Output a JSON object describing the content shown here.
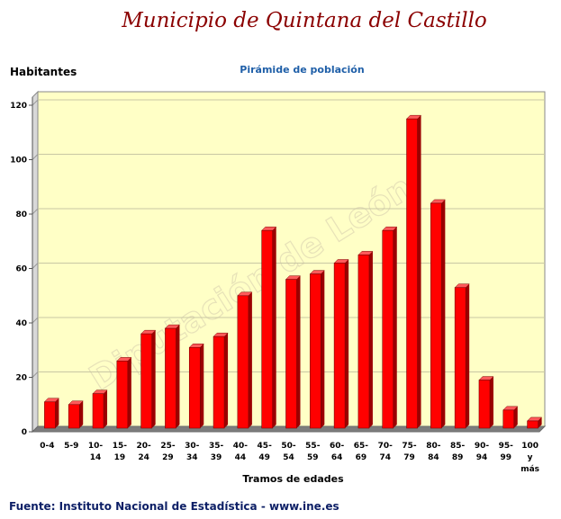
{
  "page": {
    "title": "Municipio de Quintana del Castillo",
    "source": "Fuente: Instituto Nacional de Estadística - www.ine.es",
    "watermark": "Diputación de León"
  },
  "chart_data": {
    "type": "bar",
    "title": "Pirámide de población",
    "ylabel": "Habitantes",
    "xlabel": "Tramos de edades",
    "ylim": [
      0,
      120
    ],
    "yticks": [
      0,
      20,
      40,
      60,
      80,
      100,
      120
    ],
    "grid": true,
    "categories": [
      [
        "0-4"
      ],
      [
        "5-9"
      ],
      [
        "10-",
        "14"
      ],
      [
        "15-",
        "19"
      ],
      [
        "20-",
        "24"
      ],
      [
        "25-",
        "29"
      ],
      [
        "30-",
        "34"
      ],
      [
        "35-",
        "39"
      ],
      [
        "40-",
        "44"
      ],
      [
        "45-",
        "49"
      ],
      [
        "50-",
        "54"
      ],
      [
        "55-",
        "59"
      ],
      [
        "60-",
        "64"
      ],
      [
        "65-",
        "69"
      ],
      [
        "70-",
        "74"
      ],
      [
        "75-",
        "79"
      ],
      [
        "80-",
        "84"
      ],
      [
        "85-",
        "89"
      ],
      [
        "90-",
        "94"
      ],
      [
        "95-",
        "99"
      ],
      [
        "100",
        "y",
        "más"
      ]
    ],
    "values": [
      9,
      8,
      12,
      24,
      34,
      36,
      29,
      33,
      48,
      72,
      54,
      56,
      60,
      63,
      72,
      113,
      82,
      51,
      17,
      6,
      2
    ],
    "colors": {
      "bar": "#ff0000",
      "bar_side": "#9b0000",
      "bar_top": "#ff5a5a",
      "wall": "#ffffc6",
      "floor": "#7d7d7d",
      "grid": "#c9c7a4"
    }
  }
}
